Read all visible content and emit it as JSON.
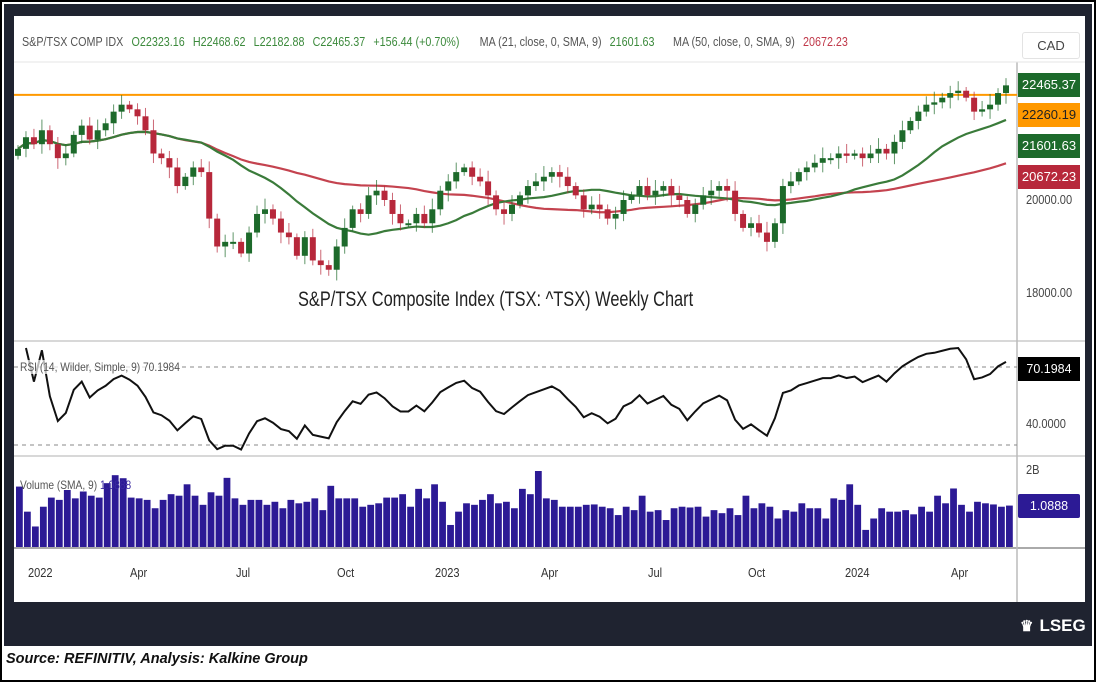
{
  "header": {
    "symbol": "S&P/TSX COMP IDX",
    "open": "O22323.16",
    "high": "H22468.62",
    "low": "L22182.88",
    "close": "C22465.37",
    "change": "+156.44 (+0.70%)",
    "ma21_label": "MA (21, close, 0, SMA, 9)",
    "ma21_value": "21601.63",
    "ma50_label": "MA (50, close, 0, SMA, 9)",
    "ma50_value": "20672.23"
  },
  "currency": "CAD",
  "price_labels": {
    "last": "22465.37",
    "resistance": "22260.19",
    "ma21": "21601.63",
    "ma50": "20672.23"
  },
  "price_axis": [
    "20000.00",
    "18000.00"
  ],
  "chart_title": "S&P/TSX Composite Index (TSX: ^TSX) Weekly Chart",
  "rsi": {
    "label": "RSI (14, Wilder, Simple, 9)",
    "value": "70.1984",
    "axis": "40.0000",
    "levels": [
      70,
      30
    ]
  },
  "volume": {
    "label": "Volume (SMA, 9)",
    "value": "1.0888",
    "axis": "2B"
  },
  "x_axis": [
    "2022",
    "Apr",
    "Jul",
    "Oct",
    "2023",
    "Apr",
    "Jul",
    "Oct",
    "2024",
    "Apr"
  ],
  "logo": "LSEG",
  "caption": "Source: REFINITIV, Analysis: Kalkine Group",
  "colors": {
    "up": "#1d6a2b",
    "down": "#b7283b",
    "ma21": "#3a7b3a",
    "ma50": "#c4434f",
    "resistance": "#ff9900",
    "volume": "#2c1a95"
  },
  "chart_data": {
    "type": "candlestick",
    "resistance": 22260.19,
    "closes": [
      21100,
      21350,
      21200,
      21500,
      21200,
      20900,
      21000,
      21400,
      21600,
      21300,
      21500,
      21650,
      21900,
      22050,
      21950,
      21800,
      21500,
      21000,
      20900,
      20700,
      20300,
      20500,
      20700,
      20600,
      19600,
      19000,
      19100,
      19100,
      18850,
      19300,
      19700,
      19800,
      19600,
      19300,
      19200,
      18800,
      19200,
      18700,
      18600,
      18500,
      19000,
      19400,
      19800,
      19700,
      20100,
      20200,
      20000,
      19700,
      19500,
      19500,
      19700,
      19500,
      19800,
      20200,
      20400,
      20600,
      20700,
      20500,
      20400,
      20100,
      19800,
      19700,
      19900,
      20100,
      20300,
      20400,
      20500,
      20600,
      20500,
      20300,
      20100,
      19800,
      19900,
      19800,
      19600,
      19700,
      20000,
      20100,
      20300,
      20100,
      20200,
      20300,
      20100,
      20000,
      19700,
      19900,
      20100,
      20200,
      20300,
      20200,
      19700,
      19400,
      19500,
      19300,
      19100,
      19500,
      20300,
      20400,
      20600,
      20700,
      20800,
      20900,
      20900,
      21000,
      20950,
      21000,
      20900,
      21000,
      21100,
      21000,
      21250,
      21500,
      21700,
      21900,
      22050,
      22100,
      22200,
      22300,
      22350,
      22200,
      21900,
      21950,
      22050,
      22300,
      22465.37
    ],
    "volumes_billion": [
      1.59,
      0.93,
      0.54,
      1.06,
      1.3,
      1.24,
      1.5,
      1.28,
      1.46,
      1.35,
      1.3,
      1.68,
      1.89,
      1.81,
      1.3,
      1.28,
      1.24,
      1.02,
      1.24,
      1.39,
      1.35,
      1.65,
      1.35,
      1.11,
      1.44,
      1.35,
      1.82,
      1.28,
      1.11,
      1.24,
      1.24,
      1.11,
      1.19,
      1.02,
      1.24,
      1.15,
      1.19,
      1.28,
      0.97,
      1.61,
      1.28,
      1.28,
      1.28,
      1.06,
      1.11,
      1.15,
      1.3,
      1.3,
      1.39,
      1.06,
      1.53,
      1.28,
      1.65,
      1.19,
      0.58,
      0.93,
      1.15,
      1.11,
      1.24,
      1.39,
      1.15,
      1.19,
      1.02,
      1.53,
      1.39,
      2.0,
      1.28,
      1.24,
      1.06,
      1.06,
      1.06,
      1.11,
      1.12,
      1.06,
      1.02,
      0.84,
      1.06,
      0.97,
      1.35,
      0.93,
      0.97,
      0.71,
      1.02,
      1.06,
      1.04,
      1.06,
      0.8,
      0.97,
      0.89,
      1.02,
      0.84,
      1.35,
      1.02,
      1.15,
      1.06,
      0.75,
      0.97,
      0.93,
      1.15,
      1.02,
      1.02,
      0.75,
      1.28,
      1.24,
      1.65,
      1.11,
      0.45,
      0.75,
      1.02,
      0.93,
      0.93,
      0.97,
      0.86,
      1.06,
      0.93,
      1.35,
      1.15,
      1.54,
      1.11,
      0.93,
      1.19,
      1.15,
      1.12,
      1.06,
      1.09
    ],
    "y_axis_ticks": [
      20000,
      18000
    ]
  }
}
